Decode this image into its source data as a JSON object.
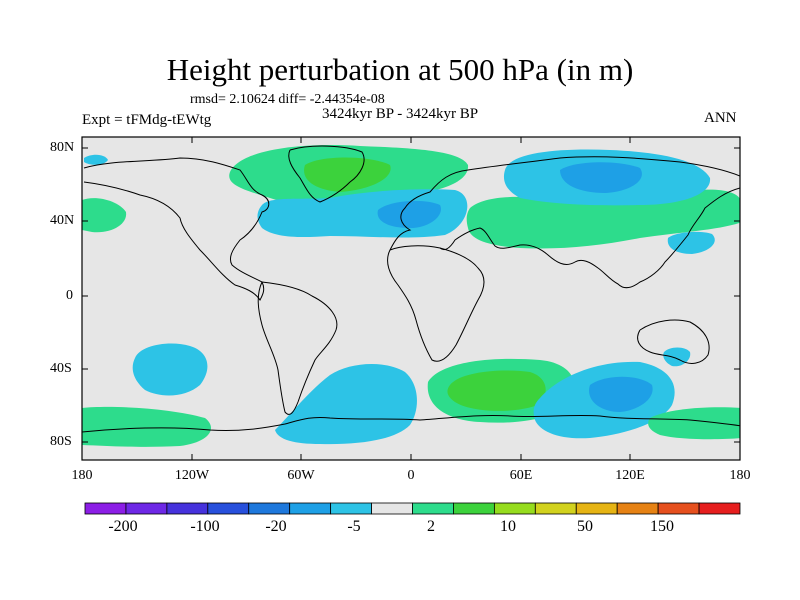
{
  "title": "Height perturbation at 500 hPa (in m)",
  "stats_line": "rmsd= 2.10624 diff= -2.44354e-08",
  "period": "3424kyr BP - 3424kyr BP",
  "experiment": "Expt = tFMdg-tEWtg",
  "season": "ANN",
  "lat_labels": [
    "80N",
    "40N",
    "0",
    "40S",
    "80S"
  ],
  "lon_labels": [
    "180",
    "120W",
    "60W",
    "0",
    "60E",
    "120E",
    "180"
  ],
  "colorbar": {
    "labels": [
      "-200",
      "-100",
      "-20",
      "-5",
      "2",
      "10",
      "50",
      "150"
    ],
    "colors": [
      "#8c1ee6",
      "#6e28e6",
      "#4632dc",
      "#2850dc",
      "#1e78dc",
      "#1ea0e6",
      "#2dc3e6",
      "#e6e6e6",
      "#2ddc8c",
      "#3cd23c",
      "#96dc1e",
      "#d2d21e",
      "#e6b414",
      "#e68214",
      "#e6501e",
      "#e61e1e"
    ]
  },
  "map": {
    "background_color": "#e6e6e6",
    "coastline_color": "#000000"
  }
}
